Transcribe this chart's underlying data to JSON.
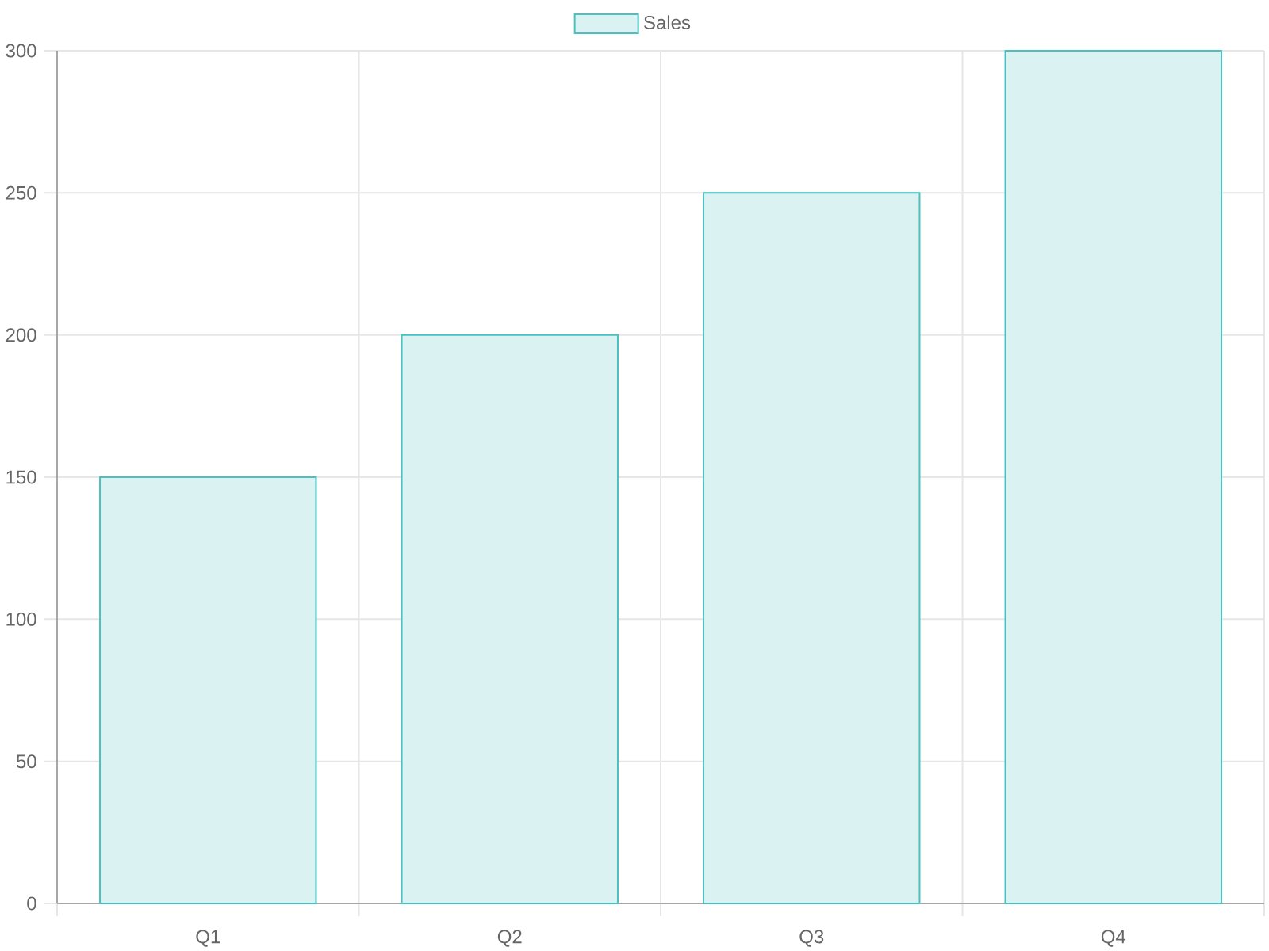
{
  "chart_data": {
    "type": "bar",
    "categories": [
      "Q1",
      "Q2",
      "Q3",
      "Q4"
    ],
    "series": [
      {
        "name": "Sales",
        "color": "#dbf2f2",
        "values": [
          150,
          200,
          250,
          300
        ]
      }
    ],
    "ylim": [
      0,
      300
    ],
    "yticks": [
      0,
      50,
      100,
      150,
      200,
      250,
      300
    ],
    "grid": true,
    "legend": "top"
  }
}
